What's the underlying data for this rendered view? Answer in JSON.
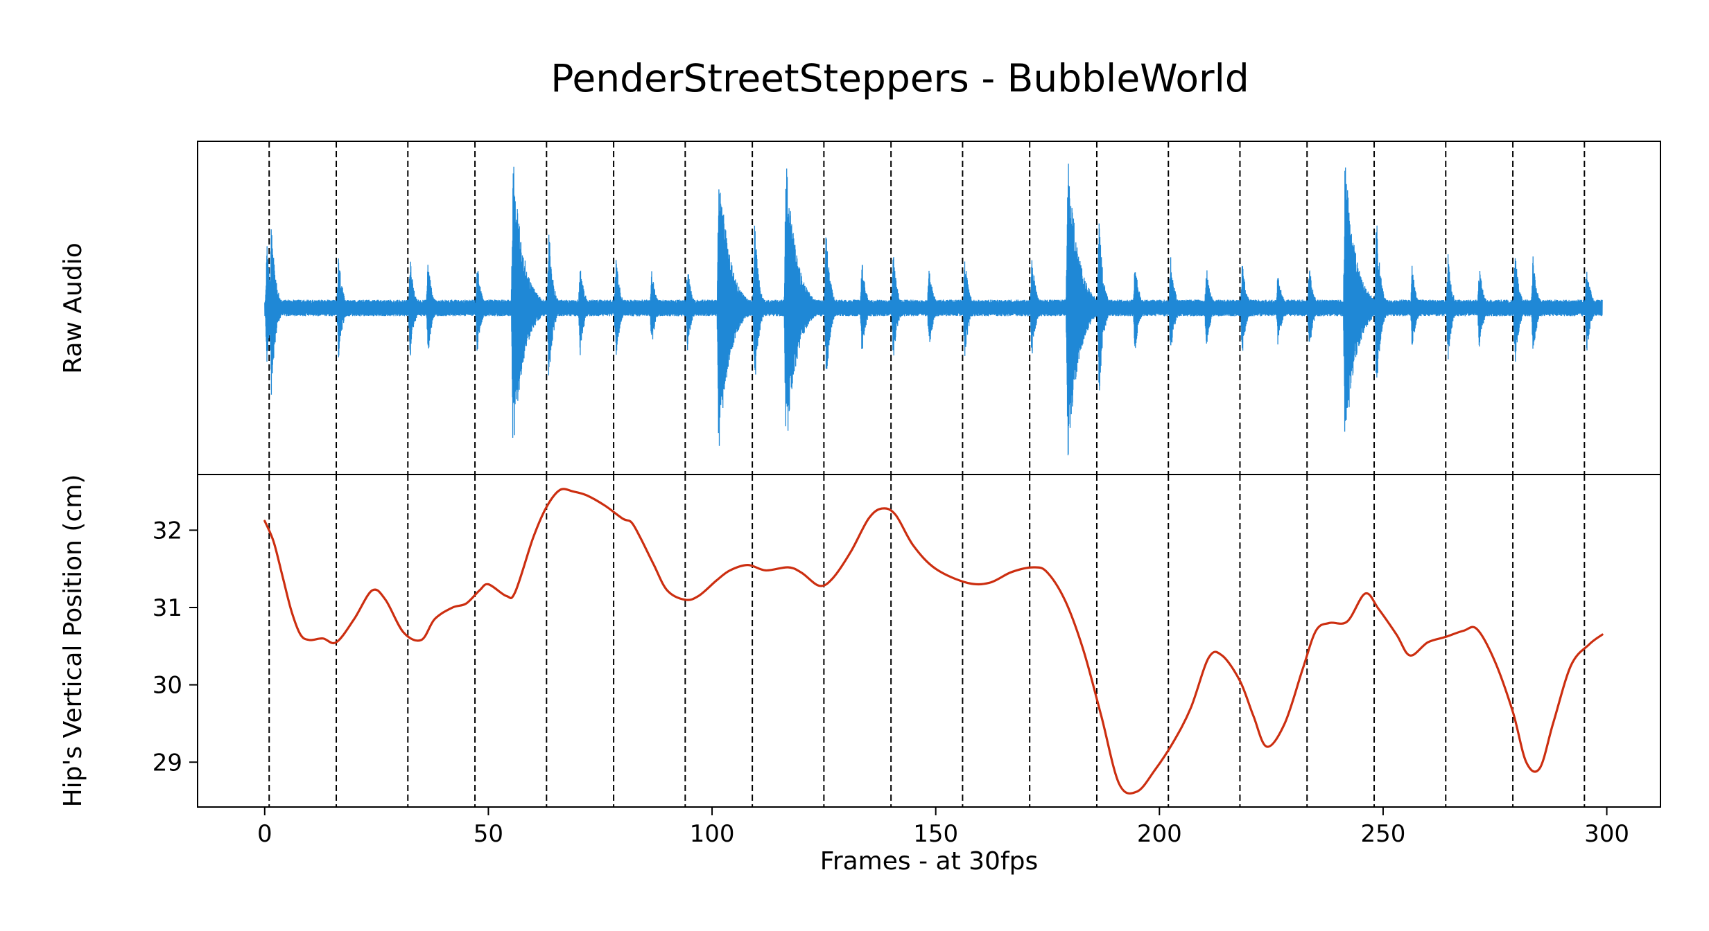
{
  "title": "PenderStreetSteppers - BubbleWorld",
  "colors": {
    "audio": "#1f88d6",
    "hip": "#cc2e10",
    "beat_line": "#000000",
    "frame": "#000000"
  },
  "chart_data": [
    {
      "type": "line",
      "name": "raw-audio",
      "ylabel": "Raw Audio",
      "xlim": [
        -15,
        312
      ],
      "ylim": [
        -1.0,
        1.0
      ],
      "beats": [
        1,
        16,
        32,
        47,
        63,
        78,
        94,
        109,
        125,
        140,
        156,
        171,
        186,
        202,
        218,
        233,
        248,
        264,
        279,
        295
      ],
      "x_range": [
        0,
        299
      ],
      "baseline_amplitude": 0.05,
      "onsets": [
        {
          "x": 0.5,
          "amp": 0.4
        },
        {
          "x": 1.5,
          "amp": 0.55
        },
        {
          "x": 16.5,
          "amp": 0.33
        },
        {
          "x": 32.5,
          "amp": 0.32
        },
        {
          "x": 36.5,
          "amp": 0.3
        },
        {
          "x": 47.5,
          "amp": 0.28
        },
        {
          "x": 55.5,
          "amp": 0.92
        },
        {
          "x": 63.5,
          "amp": 0.5
        },
        {
          "x": 70.5,
          "amp": 0.3
        },
        {
          "x": 78.5,
          "amp": 0.34
        },
        {
          "x": 86.5,
          "amp": 0.25
        },
        {
          "x": 94.5,
          "amp": 0.27
        },
        {
          "x": 101.5,
          "amp": 0.92
        },
        {
          "x": 109.5,
          "amp": 0.55
        },
        {
          "x": 116.5,
          "amp": 0.92
        },
        {
          "x": 125.5,
          "amp": 0.5
        },
        {
          "x": 133.5,
          "amp": 0.3
        },
        {
          "x": 140.5,
          "amp": 0.34
        },
        {
          "x": 148.5,
          "amp": 0.28
        },
        {
          "x": 156.5,
          "amp": 0.32
        },
        {
          "x": 171.5,
          "amp": 0.33
        },
        {
          "x": 179.5,
          "amp": 0.95
        },
        {
          "x": 186.5,
          "amp": 0.58
        },
        {
          "x": 194.5,
          "amp": 0.3
        },
        {
          "x": 202.5,
          "amp": 0.32
        },
        {
          "x": 210.5,
          "amp": 0.27
        },
        {
          "x": 218.5,
          "amp": 0.3
        },
        {
          "x": 226.5,
          "amp": 0.25
        },
        {
          "x": 233.5,
          "amp": 0.28
        },
        {
          "x": 241.5,
          "amp": 0.93
        },
        {
          "x": 248.5,
          "amp": 0.58
        },
        {
          "x": 256.5,
          "amp": 0.27
        },
        {
          "x": 264.5,
          "amp": 0.33
        },
        {
          "x": 271.5,
          "amp": 0.27
        },
        {
          "x": 279.5,
          "amp": 0.37
        },
        {
          "x": 283.5,
          "amp": 0.32
        },
        {
          "x": 295.5,
          "amp": 0.3
        }
      ]
    },
    {
      "type": "line",
      "name": "hip-vertical-position",
      "xlabel": "Frames - at 30fps",
      "ylabel": "Hip's Vertical Position (cm)",
      "xlim": [
        -15,
        312
      ],
      "ylim": [
        28.42,
        32.72
      ],
      "xticks": [
        0,
        50,
        100,
        150,
        200,
        250,
        300
      ],
      "yticks": [
        29,
        30,
        31,
        32
      ],
      "beats": [
        1,
        16,
        32,
        47,
        63,
        78,
        94,
        109,
        125,
        140,
        156,
        171,
        186,
        202,
        218,
        233,
        248,
        264,
        279,
        295
      ],
      "x": [
        0,
        2,
        4,
        6,
        8,
        10,
        13,
        16,
        20,
        24,
        27,
        31,
        35,
        38,
        42,
        45,
        48,
        50,
        54,
        56,
        60,
        63,
        66,
        69,
        72,
        76,
        80,
        82,
        84,
        87,
        90,
        94,
        97,
        101,
        104,
        108,
        112,
        117,
        120,
        124,
        127,
        131,
        135,
        138,
        141,
        145,
        150,
        157,
        162,
        167,
        172,
        175,
        179,
        183,
        187,
        191,
        195,
        199,
        203,
        207,
        211,
        214,
        218,
        221,
        224,
        228,
        232,
        235,
        238,
        242,
        246,
        249,
        253,
        256,
        260,
        264,
        268,
        271,
        275,
        279,
        282,
        285,
        288,
        292,
        296,
        299
      ],
      "y": [
        32.12,
        31.85,
        31.4,
        30.95,
        30.65,
        30.58,
        30.6,
        30.55,
        30.85,
        31.22,
        31.1,
        30.68,
        30.58,
        30.85,
        31.0,
        31.05,
        31.22,
        31.3,
        31.15,
        31.2,
        31.9,
        32.3,
        32.52,
        32.5,
        32.45,
        32.32,
        32.15,
        32.1,
        31.9,
        31.55,
        31.22,
        31.1,
        31.15,
        31.35,
        31.48,
        31.55,
        31.48,
        31.52,
        31.45,
        31.28,
        31.38,
        31.72,
        32.15,
        32.28,
        32.2,
        31.8,
        31.5,
        31.32,
        31.32,
        31.46,
        31.52,
        31.45,
        31.08,
        30.45,
        29.6,
        28.72,
        28.62,
        28.9,
        29.25,
        29.7,
        30.35,
        30.38,
        30.05,
        29.6,
        29.2,
        29.5,
        30.2,
        30.7,
        30.8,
        30.82,
        31.18,
        30.98,
        30.65,
        30.38,
        30.55,
        30.62,
        30.7,
        30.72,
        30.3,
        29.65,
        29.0,
        28.92,
        29.5,
        30.25,
        30.52,
        30.65
      ]
    }
  ]
}
